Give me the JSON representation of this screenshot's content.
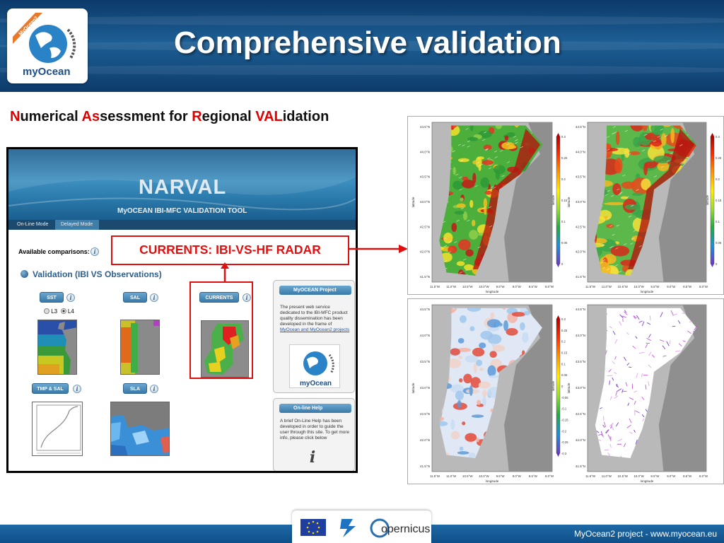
{
  "slide": {
    "title": "Comprehensive validation",
    "subtitle_parts": [
      {
        "text": "N",
        "red": true
      },
      {
        "text": "umerical ",
        "red": false
      },
      {
        "text": "As",
        "red": true
      },
      {
        "text": "sessment for ",
        "red": false
      },
      {
        "text": "R",
        "red": true
      },
      {
        "text": "egional ",
        "red": false
      },
      {
        "text": "VAL",
        "red": true
      },
      {
        "text": "idation",
        "red": false
      }
    ],
    "logo": {
      "ribbon": "MyOcean2",
      "text": "myOcean"
    },
    "callout": "CURRENTS:  IBI-VS-HF RADAR",
    "footer": "MyOcean2 project - www.myocean.eu",
    "footer_logo_text": "opernicus",
    "colors": {
      "accent_red": "#e01010",
      "header_blue": "#1d5e94",
      "link_blue": "#2456a6"
    }
  },
  "narval": {
    "title": "NARVAL",
    "subtitle": "MyOCEAN IBI-MFC VALIDATION TOOL",
    "tabs": [
      {
        "label": "On-Line Mode"
      },
      {
        "label": "Delayed Mode"
      }
    ],
    "available_label": "Available comparisons:",
    "validation_heading": "Validation (IBI VS Observations)",
    "buttons": {
      "sst": "SST",
      "sal": "SAL",
      "currents": "CURRENTS",
      "tmp_sal": "TMP & SAL",
      "sla": "SLA"
    },
    "radios": {
      "l3": "L3",
      "l4": "L4",
      "selected": "L4"
    },
    "project_panel": {
      "title": "MyOCEAN Project",
      "text": "The present web service dedicated to the IBI-MFC product quality dissemination has been developed in the frame of",
      "link": "MyOcean and MyOcean2 projects",
      "logo_text": "myOcean"
    },
    "help_panel": {
      "title": "On-line Help",
      "text": "A brief On-Line Help has been developed in order to guide the user through this site. To get more info, please click below"
    }
  },
  "maps": {
    "latitudes": [
      "44.5°N",
      "44.0°N",
      "43.5°N",
      "43.0°N",
      "42.5°N",
      "42.0°N",
      "41.5°N"
    ],
    "longitudes": [
      "11.5°W",
      "11.0°W",
      "10.5°W",
      "10.0°W",
      "9.5°W",
      "9.0°W",
      "8.5°W",
      "8.0°W"
    ],
    "xlabel": "longitude",
    "ylabel": "latitude",
    "colorbar_a": [
      "0.3",
      "0.25",
      "0.2",
      "0.15",
      "0.1",
      "0.05",
      "0"
    ],
    "colorbar_b": [
      "0.3",
      "0.25",
      "0.2",
      "0.15",
      "0.1",
      "0.05",
      "0",
      "-0.05",
      "-0.1",
      "-0.15",
      "-0.2",
      "-0.25",
      "-0.3"
    ]
  }
}
